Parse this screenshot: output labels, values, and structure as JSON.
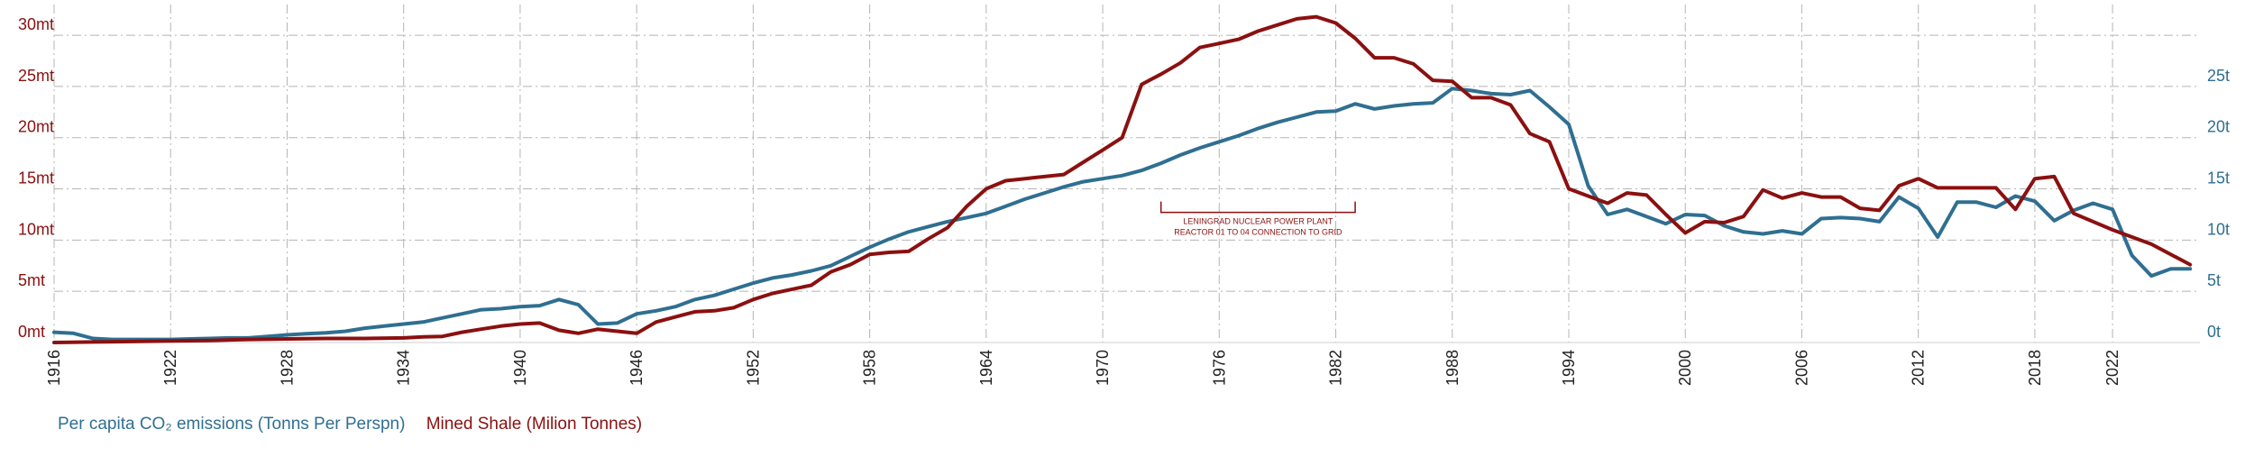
{
  "chart_data": {
    "type": "line",
    "title": "",
    "xlabel": "",
    "xlim": [
      1916,
      2023
    ],
    "grid": true,
    "left_axis": {
      "unit_suffix": "mt",
      "ylim": [
        0,
        33
      ],
      "ticks": [
        {
          "value": 0,
          "label": "0mt"
        },
        {
          "value": 5,
          "label": "5mt"
        },
        {
          "value": 10,
          "label": "10mt"
        },
        {
          "value": 15,
          "label": "15mt"
        },
        {
          "value": 20,
          "label": "20mt"
        },
        {
          "value": 25,
          "label": "25mt"
        },
        {
          "value": 30,
          "label": "30mt"
        }
      ]
    },
    "right_axis": {
      "unit_suffix": "t",
      "ylim": [
        0,
        33
      ],
      "ticks": [
        {
          "value": 0,
          "label": "0t"
        },
        {
          "value": 5,
          "label": "5t"
        },
        {
          "value": 10,
          "label": "10t"
        },
        {
          "value": 15,
          "label": "15t"
        },
        {
          "value": 20,
          "label": "20t"
        },
        {
          "value": 25,
          "label": "25t"
        }
      ]
    },
    "x_ticks": [
      "1916",
      "1922",
      "1928",
      "1934",
      "1940",
      "1946",
      "1952",
      "1958",
      "1964",
      "1970",
      "1976",
      "1982",
      "1988",
      "1994",
      "2000",
      "2006",
      "2012",
      "2018",
      "2022"
    ],
    "series": [
      {
        "name": "Per capita CO₂ emissions (Tonns Per Perspn)",
        "color": "#2f6f91",
        "axis": "right",
        "points": [
          [
            1916,
            1.0
          ],
          [
            1917,
            0.9
          ],
          [
            1918,
            0.4
          ],
          [
            1919,
            0.3
          ],
          [
            1920,
            0.3
          ],
          [
            1921,
            0.3
          ],
          [
            1922,
            0.3
          ],
          [
            1923,
            0.35
          ],
          [
            1924,
            0.4
          ],
          [
            1925,
            0.45
          ],
          [
            1926,
            0.45
          ],
          [
            1927,
            0.6
          ],
          [
            1928,
            0.75
          ],
          [
            1929,
            0.85
          ],
          [
            1930,
            0.95
          ],
          [
            1931,
            1.1
          ],
          [
            1932,
            1.4
          ],
          [
            1933,
            1.6
          ],
          [
            1934,
            1.8
          ],
          [
            1935,
            2.0
          ],
          [
            1936,
            2.4
          ],
          [
            1937,
            2.8
          ],
          [
            1938,
            3.2
          ],
          [
            1939,
            3.3
          ],
          [
            1940,
            3.5
          ],
          [
            1941,
            3.6
          ],
          [
            1942,
            4.2
          ],
          [
            1943,
            3.7
          ],
          [
            1944,
            1.8
          ],
          [
            1945,
            1.9
          ],
          [
            1946,
            2.8
          ],
          [
            1947,
            3.1
          ],
          [
            1948,
            3.5
          ],
          [
            1949,
            4.2
          ],
          [
            1950,
            4.6
          ],
          [
            1951,
            5.2
          ],
          [
            1952,
            5.8
          ],
          [
            1953,
            6.3
          ],
          [
            1954,
            6.6
          ],
          [
            1955,
            7.0
          ],
          [
            1956,
            7.5
          ],
          [
            1957,
            8.4
          ],
          [
            1958,
            9.3
          ],
          [
            1959,
            10.1
          ],
          [
            1960,
            10.8
          ],
          [
            1961,
            11.3
          ],
          [
            1962,
            11.8
          ],
          [
            1963,
            12.2
          ],
          [
            1964,
            12.6
          ],
          [
            1965,
            13.3
          ],
          [
            1966,
            14.0
          ],
          [
            1967,
            14.6
          ],
          [
            1968,
            15.2
          ],
          [
            1969,
            15.7
          ],
          [
            1970,
            16.0
          ],
          [
            1971,
            16.3
          ],
          [
            1972,
            16.8
          ],
          [
            1973,
            17.5
          ],
          [
            1974,
            18.3
          ],
          [
            1975,
            19.0
          ],
          [
            1976,
            19.6
          ],
          [
            1977,
            20.2
          ],
          [
            1978,
            20.9
          ],
          [
            1979,
            21.5
          ],
          [
            1980,
            22.0
          ],
          [
            1981,
            22.5
          ],
          [
            1982,
            22.6
          ],
          [
            1983,
            23.3
          ],
          [
            1984,
            22.8
          ],
          [
            1985,
            23.1
          ],
          [
            1986,
            23.3
          ],
          [
            1987,
            23.4
          ],
          [
            1988,
            24.8
          ],
          [
            1989,
            24.6
          ],
          [
            1990,
            24.3
          ],
          [
            1991,
            24.2
          ],
          [
            1992,
            24.6
          ],
          [
            1993,
            23.0
          ],
          [
            1994,
            21.3
          ],
          [
            1995,
            15.3
          ],
          [
            1996,
            12.5
          ],
          [
            1997,
            13.0
          ],
          [
            1998,
            12.3
          ],
          [
            1999,
            11.6
          ],
          [
            2000,
            12.5
          ],
          [
            2001,
            12.4
          ],
          [
            2002,
            11.4
          ],
          [
            2003,
            10.8
          ],
          [
            2004,
            10.6
          ],
          [
            2005,
            10.9
          ],
          [
            2006,
            10.6
          ],
          [
            2007,
            12.1
          ],
          [
            2008,
            12.2
          ],
          [
            2009,
            12.1
          ],
          [
            2010,
            11.8
          ],
          [
            2011,
            14.2
          ],
          [
            2012,
            13.1
          ],
          [
            2013,
            10.3
          ],
          [
            2014,
            13.7
          ],
          [
            2015,
            13.7
          ],
          [
            2016,
            13.2
          ],
          [
            2017,
            14.3
          ],
          [
            2018,
            13.8
          ],
          [
            2019,
            11.9
          ],
          [
            2020,
            12.9
          ],
          [
            2021,
            13.6
          ],
          [
            2022,
            13.0
          ],
          [
            2023,
            8.5
          ],
          [
            2024,
            6.5
          ],
          [
            2025,
            7.2
          ],
          [
            2026,
            7.2
          ]
        ]
      },
      {
        "name": "Mined Shale (Milion Tonnes)",
        "color": "#8b1010",
        "axis": "left",
        "points": [
          [
            1916,
            0.0
          ],
          [
            1918,
            0.05
          ],
          [
            1920,
            0.1
          ],
          [
            1922,
            0.15
          ],
          [
            1924,
            0.2
          ],
          [
            1926,
            0.3
          ],
          [
            1928,
            0.35
          ],
          [
            1930,
            0.4
          ],
          [
            1932,
            0.4
          ],
          [
            1934,
            0.45
          ],
          [
            1935,
            0.55
          ],
          [
            1936,
            0.6
          ],
          [
            1937,
            1.0
          ],
          [
            1938,
            1.3
          ],
          [
            1939,
            1.6
          ],
          [
            1940,
            1.8
          ],
          [
            1941,
            1.9
          ],
          [
            1942,
            1.2
          ],
          [
            1943,
            0.9
          ],
          [
            1944,
            1.3
          ],
          [
            1945,
            1.1
          ],
          [
            1946,
            0.9
          ],
          [
            1947,
            2.0
          ],
          [
            1948,
            2.5
          ],
          [
            1949,
            3.0
          ],
          [
            1950,
            3.1
          ],
          [
            1951,
            3.4
          ],
          [
            1952,
            4.2
          ],
          [
            1953,
            4.8
          ],
          [
            1954,
            5.2
          ],
          [
            1955,
            5.6
          ],
          [
            1956,
            6.9
          ],
          [
            1957,
            7.6
          ],
          [
            1958,
            8.6
          ],
          [
            1959,
            8.8
          ],
          [
            1960,
            8.9
          ],
          [
            1961,
            10.1
          ],
          [
            1962,
            11.2
          ],
          [
            1963,
            13.3
          ],
          [
            1964,
            15.0
          ],
          [
            1965,
            15.8
          ],
          [
            1966,
            16.0
          ],
          [
            1967,
            16.2
          ],
          [
            1968,
            16.4
          ],
          [
            1969,
            17.6
          ],
          [
            1970,
            18.8
          ],
          [
            1971,
            20.0
          ],
          [
            1972,
            25.2
          ],
          [
            1973,
            26.2
          ],
          [
            1974,
            27.3
          ],
          [
            1975,
            28.8
          ],
          [
            1976,
            29.2
          ],
          [
            1977,
            29.6
          ],
          [
            1978,
            30.4
          ],
          [
            1979,
            31.0
          ],
          [
            1980,
            31.6
          ],
          [
            1981,
            31.8
          ],
          [
            1982,
            31.2
          ],
          [
            1983,
            29.7
          ],
          [
            1984,
            27.8
          ],
          [
            1985,
            27.8
          ],
          [
            1986,
            27.2
          ],
          [
            1987,
            25.6
          ],
          [
            1988,
            25.5
          ],
          [
            1989,
            23.9
          ],
          [
            1990,
            23.9
          ],
          [
            1991,
            23.2
          ],
          [
            1992,
            20.4
          ],
          [
            1993,
            19.6
          ],
          [
            1994,
            15.0
          ],
          [
            1995,
            14.3
          ],
          [
            1996,
            13.6
          ],
          [
            1997,
            14.6
          ],
          [
            1998,
            14.4
          ],
          [
            1999,
            12.5
          ],
          [
            2000,
            10.7
          ],
          [
            2001,
            11.8
          ],
          [
            2002,
            11.7
          ],
          [
            2003,
            12.3
          ],
          [
            2004,
            14.9
          ],
          [
            2005,
            14.1
          ],
          [
            2006,
            14.6
          ],
          [
            2007,
            14.2
          ],
          [
            2008,
            14.2
          ],
          [
            2009,
            13.1
          ],
          [
            2010,
            12.9
          ],
          [
            2011,
            15.3
          ],
          [
            2012,
            16.0
          ],
          [
            2013,
            15.1
          ],
          [
            2014,
            15.1
          ],
          [
            2015,
            15.1
          ],
          [
            2016,
            15.1
          ],
          [
            2017,
            13.0
          ],
          [
            2018,
            16.0
          ],
          [
            2019,
            16.2
          ],
          [
            2020,
            12.6
          ],
          [
            2022,
            11.0
          ],
          [
            2024,
            9.6
          ],
          [
            2026,
            7.6
          ]
        ]
      }
    ],
    "annotation": {
      "line1": "LENINGRAD NUCLEAR POWER PLANT",
      "line2": "REACTOR 01 TO 04 CONNECTION TO GRID",
      "x_from": 1973,
      "x_to": 1983
    },
    "legend": {
      "placement": "bottom-left",
      "blue_label": "Per capita CO₂ emissions (Tonns Per Perspn)",
      "red_label": "Mined Shale (Milion Tonnes)"
    }
  }
}
